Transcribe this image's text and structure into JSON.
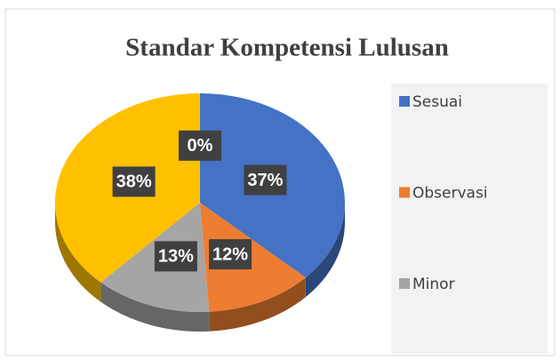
{
  "chart_data": {
    "type": "pie",
    "title": "Standar Kompetensi Lulusan",
    "categories": [
      "Sesuai",
      "Observasi",
      "Minor",
      null,
      null
    ],
    "values": [
      37,
      12,
      13,
      38,
      0
    ],
    "value_labels": [
      "37%",
      "12%",
      "13%",
      "38%",
      "0%"
    ],
    "colors": [
      "#4472c4",
      "#ed7d31",
      "#a5a5a5",
      "#ffc000",
      "#5b9bd5"
    ],
    "legend": "right"
  }
}
